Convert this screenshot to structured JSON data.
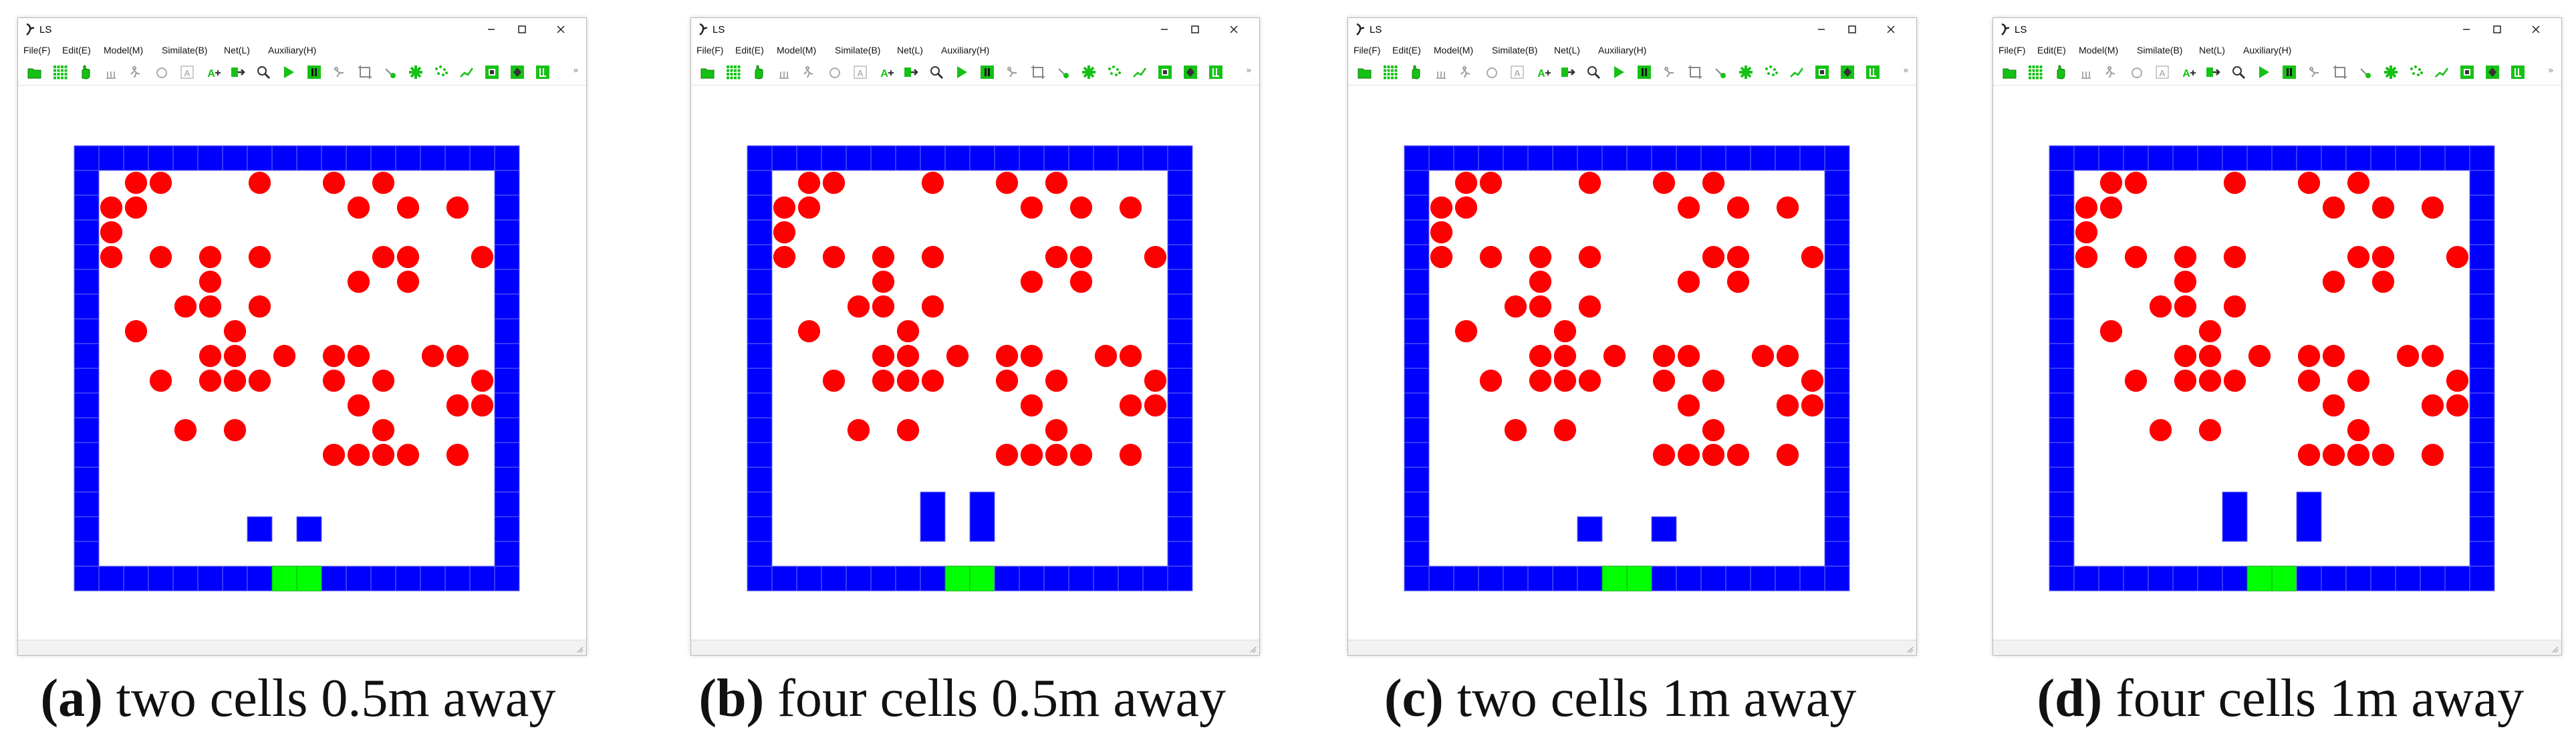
{
  "window": {
    "title": "LS",
    "menus": [
      "File(F)",
      "Edit(E)",
      "Model(M)",
      "Similate(B)",
      "Net(L)",
      "Auxiliary(H)"
    ],
    "toolbar_buttons": [
      "open-icon",
      "grid-icon",
      "hand-icon",
      "pillar-icon",
      "run-figure-icon",
      "circle-icon",
      "text-box-icon",
      "text-add-icon",
      "arrow-icon",
      "search-icon",
      "play-icon",
      "pause-icon",
      "walker-icon",
      "crop-icon",
      "point-icon",
      "cross-icon",
      "scatter-icon",
      "line-icon",
      "cell-icon",
      "target-icon",
      "exit-icon"
    ]
  },
  "colors": {
    "wall": "#0000ff",
    "wall_grid": "#6f6ff0",
    "exit": "#00ff00",
    "exit_grid": "#00a800",
    "pedestrian": "#ff0000",
    "obstacle": "#0000ff",
    "toolbar_green": "#16c116",
    "toolbar_dark": "#333333"
  },
  "panels": [
    {
      "caption_letter": "(a)",
      "caption_text": " two cells 0.5m away",
      "obstacle": {
        "cells": 2,
        "distance": "0.5m"
      }
    },
    {
      "caption_letter": "(b)",
      "caption_text": " four cells 0.5m away",
      "obstacle": {
        "cells": 4,
        "distance": "0.5m"
      }
    },
    {
      "caption_letter": "(c)",
      "caption_text": " two cells 1m away",
      "obstacle": {
        "cells": 2,
        "distance": "1m"
      }
    },
    {
      "caption_letter": "(d)",
      "caption_text": " four cells 1m away",
      "obstacle": {
        "cells": 4,
        "distance": "1m"
      }
    }
  ],
  "scene": {
    "grid_cols": 18,
    "grid_rows": 18,
    "exit_cols": [
      8,
      9
    ],
    "pedestrians": [
      [
        2,
        1
      ],
      [
        3,
        1
      ],
      [
        7,
        1
      ],
      [
        10,
        1
      ],
      [
        12,
        1
      ],
      [
        1,
        2
      ],
      [
        2,
        2
      ],
      [
        11,
        2
      ],
      [
        13,
        2
      ],
      [
        15,
        2
      ],
      [
        1,
        3
      ],
      [
        1,
        4
      ],
      [
        3,
        4
      ],
      [
        5,
        4
      ],
      [
        7,
        4
      ],
      [
        12,
        4
      ],
      [
        13,
        4
      ],
      [
        16,
        4
      ],
      [
        5,
        5
      ],
      [
        11,
        5
      ],
      [
        13,
        5
      ],
      [
        4,
        6
      ],
      [
        5,
        6
      ],
      [
        7,
        6
      ],
      [
        2,
        7
      ],
      [
        6,
        7
      ],
      [
        5,
        8
      ],
      [
        6,
        8
      ],
      [
        8,
        8
      ],
      [
        10,
        8
      ],
      [
        11,
        8
      ],
      [
        14,
        8
      ],
      [
        15,
        8
      ],
      [
        3,
        9
      ],
      [
        5,
        9
      ],
      [
        6,
        9
      ],
      [
        7,
        9
      ],
      [
        10,
        9
      ],
      [
        12,
        9
      ],
      [
        16,
        9
      ],
      [
        11,
        10
      ],
      [
        15,
        10
      ],
      [
        16,
        10
      ],
      [
        4,
        11
      ],
      [
        6,
        11
      ],
      [
        12,
        11
      ],
      [
        10,
        12
      ],
      [
        11,
        12
      ],
      [
        12,
        12
      ],
      [
        13,
        12
      ],
      [
        15,
        12
      ]
    ]
  }
}
